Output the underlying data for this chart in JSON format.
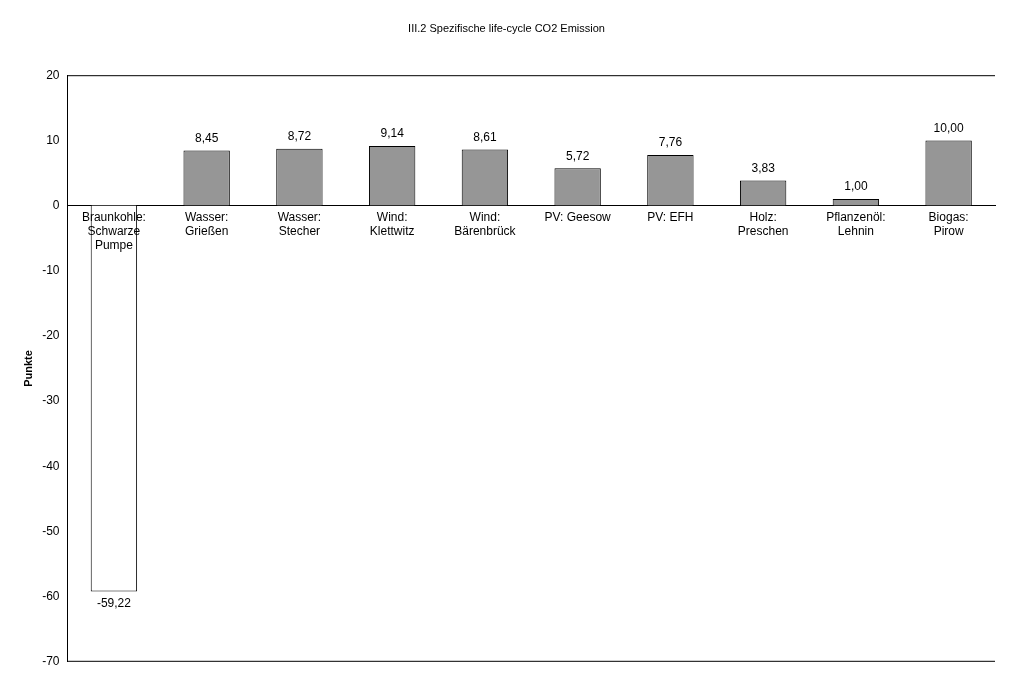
{
  "chart_data": {
    "type": "bar",
    "title": "III.2 Spezifische life-cycle CO2 Emission",
    "ylabel": "Punkte",
    "categories": [
      "Braunkohle: Schwarze Pumpe",
      "Wasser: Grießen",
      "Wasser: Stecher",
      "Wind: Klettwitz",
      "Wind: Bärenbrück",
      "PV: Geesow",
      "PV: EFH",
      "Holz: Preschen",
      "Pflanzenöl: Lehnin",
      "Biogas: Pirow"
    ],
    "values": [
      -59.22,
      8.45,
      8.72,
      9.14,
      8.61,
      5.72,
      7.76,
      3.83,
      1.0,
      10.0
    ],
    "value_labels": [
      "-59,22",
      "8,45",
      "8,72",
      "9,14",
      "8,61",
      "5,72",
      "7,76",
      "3,83",
      "1,00",
      "10,00"
    ],
    "colors": [
      "#ffffff",
      "#969696",
      "#969696",
      "#969696",
      "#969696",
      "#969696",
      "#969696",
      "#969696",
      "#969696",
      "#969696"
    ],
    "ylim": [
      -70,
      20
    ],
    "yticks": [
      -70,
      -60,
      -50,
      -40,
      -30,
      -20,
      -10,
      0,
      10,
      20
    ],
    "grid": false,
    "legend": false
  }
}
